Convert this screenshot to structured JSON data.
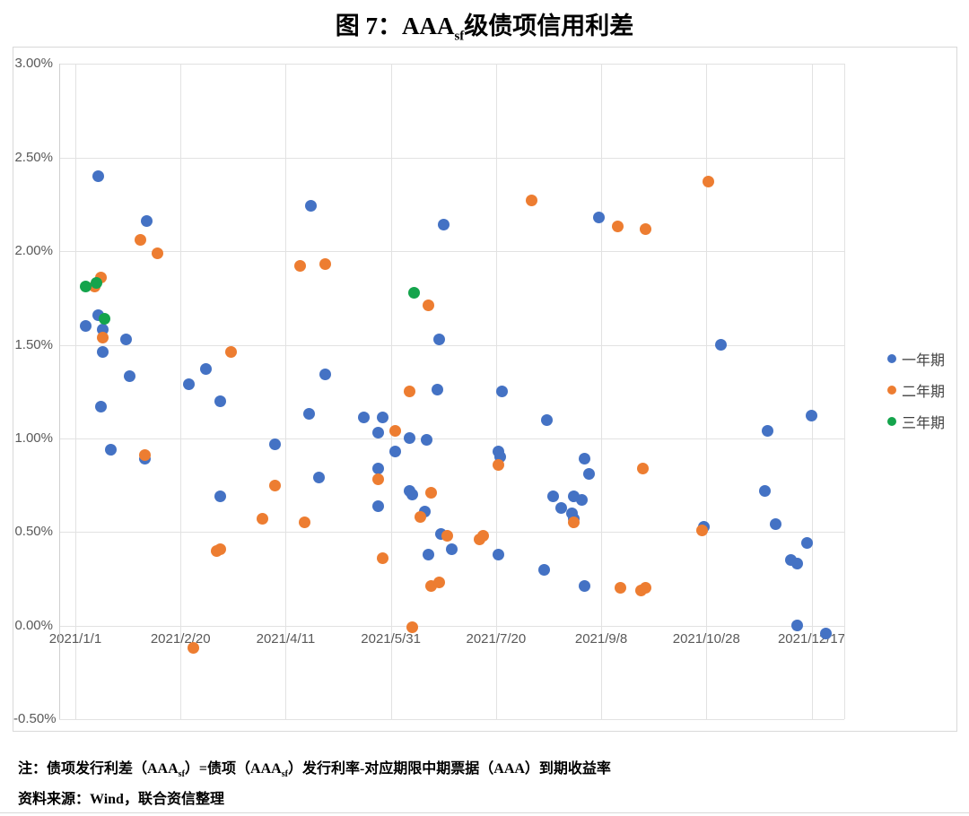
{
  "figure": {
    "title_parts": [
      {
        "t": "图 7：AAA"
      },
      {
        "sub": "sf"
      },
      {
        "t": "级债项信用利差"
      }
    ],
    "note_parts": [
      {
        "t": "注：债项发行利差（AAA"
      },
      {
        "sub": "sf"
      },
      {
        "t": "）=债项（AAA"
      },
      {
        "sub": "sf"
      },
      {
        "t": "）发行利率-对应期限中期票据（AAA）到期收益率"
      }
    ],
    "source": "资料来源：Wind，联合资信整理"
  },
  "chart_data": {
    "type": "scatter",
    "title": "图 7：AAAsf级债项信用利差",
    "xlabel": "",
    "ylabel": "",
    "grid": true,
    "legend_position": "right",
    "x_axis": {
      "unit": "date",
      "tick_days": [
        0,
        50,
        100,
        150,
        200,
        250,
        300,
        350
      ],
      "tick_labels": [
        "2021/1/1",
        "2021/2/20",
        "2021/4/11",
        "2021/5/31",
        "2021/7/20",
        "2021/9/8",
        "2021/10/28",
        "2021/12/17"
      ]
    },
    "y_axis": {
      "min": -0.5,
      "max": 3.0,
      "step": 0.5,
      "tick_labels": [
        "3.00%",
        "2.50%",
        "2.00%",
        "1.50%",
        "1.00%",
        "0.50%",
        "0.00%",
        "-0.50%"
      ]
    },
    "series": [
      {
        "name": "一年期",
        "color": "#4472c4",
        "points": [
          [
            11,
            2.4
          ],
          [
            34,
            2.16
          ],
          [
            5,
            1.6
          ],
          [
            11,
            1.66
          ],
          [
            13,
            1.58
          ],
          [
            13,
            1.46
          ],
          [
            24,
            1.53
          ],
          [
            26,
            1.33
          ],
          [
            12,
            1.17
          ],
          [
            17,
            0.94
          ],
          [
            33,
            0.89
          ],
          [
            54,
            1.29
          ],
          [
            62,
            1.37
          ],
          [
            69,
            1.2
          ],
          [
            69,
            0.69
          ],
          [
            95,
            0.97
          ],
          [
            112,
            2.24
          ],
          [
            119,
            1.34
          ],
          [
            111,
            1.13
          ],
          [
            116,
            0.79
          ],
          [
            137,
            1.11
          ],
          [
            146,
            1.11
          ],
          [
            144,
            1.03
          ],
          [
            152,
            0.93
          ],
          [
            159,
            1.0
          ],
          [
            167,
            0.99
          ],
          [
            144,
            0.84
          ],
          [
            144,
            0.64
          ],
          [
            159,
            0.72
          ],
          [
            160,
            0.7
          ],
          [
            166,
            0.61
          ],
          [
            168,
            0.38
          ],
          [
            173,
            1.53
          ],
          [
            172,
            1.26
          ],
          [
            175,
            2.14
          ],
          [
            174,
            0.49
          ],
          [
            179,
            0.41
          ],
          [
            201,
            0.93
          ],
          [
            202,
            0.9
          ],
          [
            201,
            0.38
          ],
          [
            203,
            1.25
          ],
          [
            223,
            0.3
          ],
          [
            224,
            1.1
          ],
          [
            227,
            0.69
          ],
          [
            231,
            0.63
          ],
          [
            236,
            0.6
          ],
          [
            237,
            0.57
          ],
          [
            237,
            0.69
          ],
          [
            241,
            0.67
          ],
          [
            242,
            0.89
          ],
          [
            244,
            0.81
          ],
          [
            242,
            0.21
          ],
          [
            249,
            2.18
          ],
          [
            307,
            1.5
          ],
          [
            299,
            0.53
          ],
          [
            329,
            1.04
          ],
          [
            328,
            0.72
          ],
          [
            333,
            0.54
          ],
          [
            350,
            1.12
          ],
          [
            348,
            0.44
          ],
          [
            340,
            0.35
          ],
          [
            343,
            0.33
          ],
          [
            343,
            0.0
          ],
          [
            357,
            -0.04
          ]
        ]
      },
      {
        "name": "二年期",
        "color": "#ed7d31",
        "points": [
          [
            9,
            1.81
          ],
          [
            12,
            1.86
          ],
          [
            13,
            1.54
          ],
          [
            31,
            2.06
          ],
          [
            39,
            1.99
          ],
          [
            33,
            0.91
          ],
          [
            56,
            -0.12
          ],
          [
            67,
            0.4
          ],
          [
            69,
            0.41
          ],
          [
            74,
            1.46
          ],
          [
            89,
            0.57
          ],
          [
            95,
            0.75
          ],
          [
            107,
            1.92
          ],
          [
            119,
            1.93
          ],
          [
            109,
            0.55
          ],
          [
            146,
            0.36
          ],
          [
            152,
            1.04
          ],
          [
            144,
            0.78
          ],
          [
            159,
            1.25
          ],
          [
            160,
            -0.01
          ],
          [
            164,
            0.58
          ],
          [
            168,
            1.71
          ],
          [
            169,
            0.71
          ],
          [
            169,
            0.21
          ],
          [
            173,
            0.23
          ],
          [
            177,
            0.48
          ],
          [
            192,
            0.46
          ],
          [
            194,
            0.48
          ],
          [
            201,
            0.86
          ],
          [
            217,
            2.27
          ],
          [
            237,
            0.55
          ],
          [
            258,
            2.13
          ],
          [
            271,
            2.12
          ],
          [
            259,
            0.2
          ],
          [
            269,
            0.19
          ],
          [
            271,
            0.2
          ],
          [
            270,
            0.84
          ],
          [
            298,
            0.51
          ],
          [
            301,
            2.37
          ]
        ]
      },
      {
        "name": "三年期",
        "color": "#14a44c",
        "points": [
          [
            5,
            1.81
          ],
          [
            10,
            1.83
          ],
          [
            14,
            1.64
          ],
          [
            161,
            1.78
          ]
        ]
      }
    ]
  }
}
